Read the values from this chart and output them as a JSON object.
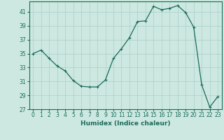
{
  "x": [
    0,
    1,
    2,
    3,
    4,
    5,
    6,
    7,
    8,
    9,
    10,
    11,
    12,
    13,
    14,
    15,
    16,
    17,
    18,
    19,
    20,
    21,
    22,
    23
  ],
  "y": [
    35,
    35.5,
    34.3,
    33.2,
    32.5,
    31.1,
    30.3,
    30.2,
    30.2,
    31.2,
    34.3,
    35.7,
    37.3,
    39.6,
    39.7,
    41.8,
    41.3,
    41.5,
    41.9,
    40.9,
    38.8,
    30.5,
    27.3,
    28.8
  ],
  "line_color": "#1a6b5a",
  "marker": "+",
  "marker_size": 3,
  "marker_linewidth": 0.8,
  "bg_color": "#cce8e0",
  "grid_color": "#aacfc8",
  "xlabel": "Humidex (Indice chaleur)",
  "xlim": [
    -0.5,
    23.5
  ],
  "ylim": [
    27,
    42.5
  ],
  "yticks": [
    27,
    29,
    31,
    33,
    35,
    37,
    39,
    41
  ],
  "xticks": [
    0,
    1,
    2,
    3,
    4,
    5,
    6,
    7,
    8,
    9,
    10,
    11,
    12,
    13,
    14,
    15,
    16,
    17,
    18,
    19,
    20,
    21,
    22,
    23
  ],
  "xtick_labels": [
    "0",
    "1",
    "2",
    "3",
    "4",
    "5",
    "6",
    "7",
    "8",
    "9",
    "10",
    "11",
    "12",
    "13",
    "14",
    "15",
    "16",
    "17",
    "18",
    "19",
    "20",
    "21",
    "22",
    "23"
  ],
  "label_fontsize": 6.5,
  "tick_fontsize": 5.5,
  "line_width": 0.9
}
